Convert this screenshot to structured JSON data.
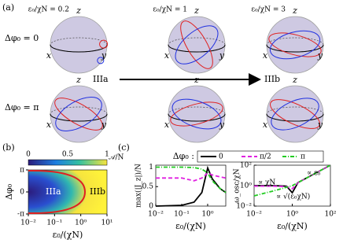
{
  "panel_a": {
    "label": "(a)",
    "columns": [
      "ε₀/χN = 0.2",
      "ε₀/χN = 1",
      "ε₀/χN = 3"
    ],
    "rows": [
      "Δφ₀ = 0",
      "Δφ₀ = π"
    ],
    "spheres": [
      {
        "x": "x",
        "y": "y",
        "z": "z"
      },
      {
        "x": "x",
        "y": "y",
        "z": "z"
      },
      {
        "x": "x",
        "y": "y",
        "z": "z"
      },
      {
        "x": "x",
        "y": "y",
        "z": "z"
      },
      {
        "x": "x",
        "y": "y",
        "z": "z"
      },
      {
        "x": "x",
        "y": "y",
        "z": "z"
      }
    ],
    "from": "IIIa",
    "to": "IIIb"
  },
  "panel_b": {
    "label": "(b)",
    "colorbar": {
      "ticks": [
        0,
        0.5,
        1
      ],
      "label": "𝒜/N"
    },
    "ylabel": "Δφ₀",
    "yticks": [
      {
        "value": 3.1416,
        "label": "π"
      },
      0,
      {
        "value": -3.1416,
        "label": "-π"
      }
    ],
    "xlabel": "ε₀/(χN)",
    "xticks": [
      {
        "value": 0.01,
        "label": "10⁻²"
      },
      {
        "value": 0.1,
        "label": "10⁻¹"
      },
      {
        "value": 1,
        "label": "10⁰"
      },
      {
        "value": 10,
        "label": "10¹"
      }
    ],
    "regions": [
      "IIIa",
      "IIIb"
    ]
  },
  "panel_c": {
    "label": "(c)",
    "legend_title": "Δφ₀ :"
  },
  "chart_data": [
    {
      "type": "line",
      "xscale": "log",
      "yscale": "linear",
      "ylabel": "max(|J_z|)/N",
      "xlabel": "ε₀/(χN)",
      "xlim": [
        0.01,
        5
      ],
      "xticks": [
        {
          "value": 0.01,
          "label": "10⁻²"
        },
        {
          "value": 0.1,
          "label": "10⁻¹"
        },
        {
          "value": 1,
          "label": "10⁰"
        }
      ],
      "ylim": [
        0,
        1.05
      ],
      "yticks": [
        0,
        0.5,
        1
      ],
      "series": [
        {
          "name": "0",
          "color": "#000000",
          "dash": "none",
          "x": [
            0.01,
            0.1,
            0.3,
            0.6,
            1,
            1.5,
            3,
            5
          ],
          "values": [
            0,
            0.02,
            0.1,
            0.35,
            0.98,
            0.7,
            0.45,
            0.35
          ]
        },
        {
          "name": "π/2",
          "color": "#e020e0",
          "dash": "5 3",
          "x": [
            0.01,
            0.1,
            0.3,
            0.6,
            1,
            1.5,
            3,
            5
          ],
          "values": [
            0.72,
            0.72,
            0.65,
            0.72,
            0.85,
            0.8,
            0.75,
            0.72
          ]
        },
        {
          "name": "π",
          "color": "#22cc22",
          "dash": "5 2 1 2",
          "x": [
            0.01,
            0.1,
            0.3,
            0.6,
            1,
            1.5,
            3,
            5
          ],
          "values": [
            1,
            1,
            0.99,
            0.95,
            0.85,
            0.65,
            0.45,
            0.35
          ]
        }
      ]
    },
    {
      "type": "line",
      "xscale": "log",
      "yscale": "log",
      "ylabel": "ω_osc/χN",
      "xlabel": "ε₀/(χN)",
      "xlim": [
        0.01,
        100
      ],
      "xticks": [
        {
          "value": 0.01,
          "label": "10⁻²"
        },
        {
          "value": 1,
          "label": "10⁰"
        },
        {
          "value": 100,
          "label": "10²"
        }
      ],
      "ylim": [
        0.01,
        100
      ],
      "yticks": [
        {
          "value": 0.01,
          "label": "10⁻²"
        },
        {
          "value": 1,
          "label": "10⁰"
        },
        {
          "value": 100,
          "label": "10²"
        }
      ],
      "annotations": [
        "∝ χN",
        "∝ ε₀",
        "∝ √(ε₀χN)"
      ],
      "series": [
        {
          "name": "0",
          "color": "#000000",
          "dash": "none",
          "x": [
            0.01,
            0.1,
            0.5,
            1,
            2,
            10,
            100
          ],
          "values": [
            1,
            1,
            0.9,
            0.2,
            2,
            10,
            100
          ]
        },
        {
          "name": "π/2",
          "color": "#e020e0",
          "dash": "5 3",
          "x": [
            0.01,
            0.1,
            0.5,
            1,
            2,
            10,
            100
          ],
          "values": [
            0.9,
            0.9,
            0.8,
            0.5,
            2,
            10,
            100
          ]
        },
        {
          "name": "π",
          "color": "#22cc22",
          "dash": "5 2 1 2",
          "x": [
            0.01,
            0.1,
            1,
            10,
            100
          ],
          "values": [
            0.1,
            0.3,
            1,
            10,
            100
          ]
        }
      ]
    }
  ]
}
